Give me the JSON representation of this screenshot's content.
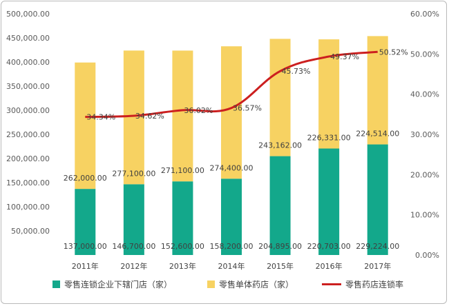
{
  "chart_data": {
    "type": "bar",
    "stacked": true,
    "categories": [
      "2011年",
      "2012年",
      "2013年",
      "2014年",
      "2015年",
      "2016年",
      "2017年"
    ],
    "series": [
      {
        "name": "零售连锁企业下辖门店（家）",
        "color": "#13a88b",
        "axis": "left",
        "values": [
          137000,
          146700,
          152600,
          158200,
          204895,
          220703,
          229224
        ],
        "labels": [
          "137,000.00",
          "146,700.00",
          "152,600.00",
          "158,200.00",
          "204,895.00",
          "220,703.00",
          "229,224.00"
        ]
      },
      {
        "name": "零售单体药店（家）",
        "color": "#f7d262",
        "axis": "left",
        "values": [
          262000,
          277100,
          271100,
          274400,
          243162,
          226331,
          224514
        ],
        "labels": [
          "262,000.00",
          "277,100.00",
          "271,100.00",
          "274,400.00",
          "243,162.00",
          "226,331.00",
          "224,514.00"
        ]
      },
      {
        "name": "零售药店连锁率",
        "type": "line",
        "color": "#cc1f1f",
        "axis": "right",
        "values": [
          34.34,
          34.62,
          36.02,
          36.57,
          45.73,
          49.37,
          50.52
        ],
        "labels": [
          "34.34%",
          "34.62%",
          "36.02%",
          "36.57%",
          "45.73%",
          "49.37%",
          "50.52%"
        ]
      }
    ],
    "y_left": {
      "min": 0,
      "max": 500000,
      "step": 50000,
      "tick_labels": [
        "",
        "50,000.00",
        "100,000.00",
        "150,000.00",
        "200,000.00",
        "250,000.00",
        "300,000.00",
        "350,000.00",
        "400,000.00",
        "450,000.00",
        "500,000.00"
      ]
    },
    "y_right": {
      "min": 0,
      "max": 60,
      "step": 10,
      "tick_labels": [
        "0.00%",
        "10.00%",
        "20.00%",
        "30.00%",
        "40.00%",
        "50.00%",
        "60.00%"
      ]
    },
    "grid": false,
    "legend_position": "bottom"
  }
}
